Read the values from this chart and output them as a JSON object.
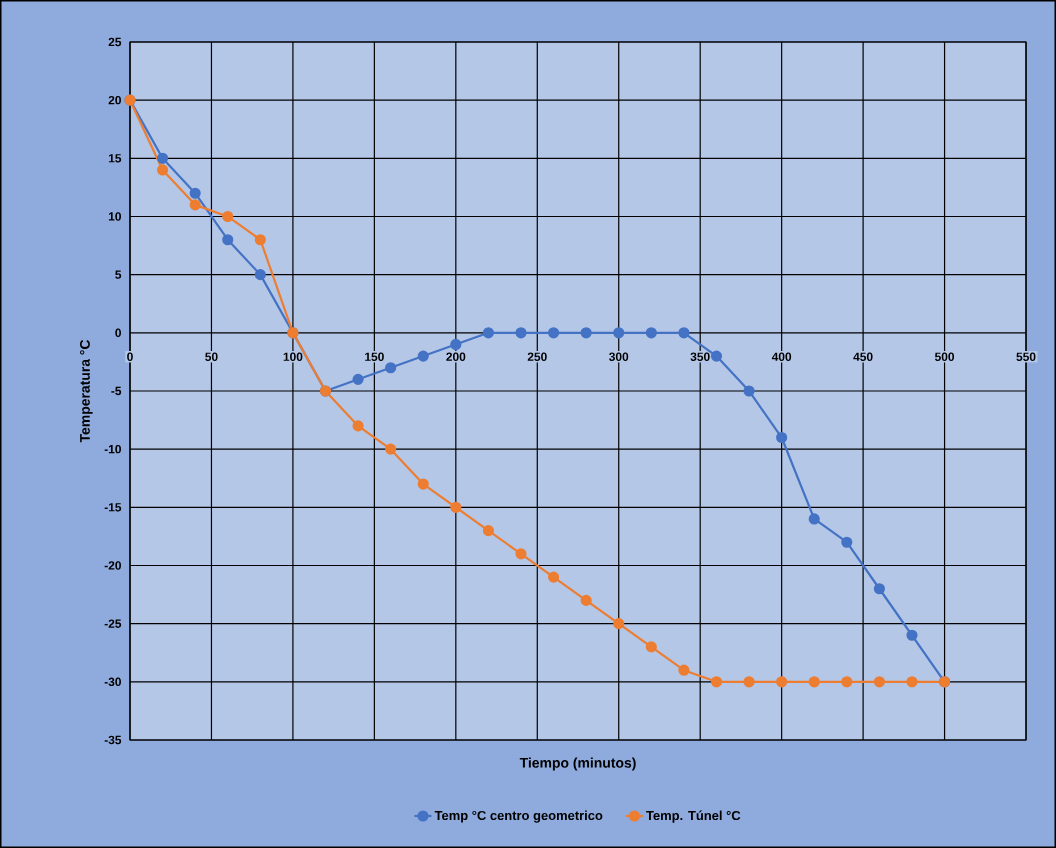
{
  "chart_data": {
    "type": "line",
    "xlabel": "Tiempo (minutos)",
    "ylabel": "Temperatura °C",
    "x": [
      0,
      20,
      40,
      60,
      80,
      100,
      120,
      140,
      160,
      180,
      200,
      220,
      240,
      260,
      280,
      300,
      320,
      340,
      360,
      380,
      400,
      420,
      440,
      460,
      480,
      500
    ],
    "series": [
      {
        "name": "Temp °C centro geometrico",
        "color": "#4472c4",
        "values": [
          20,
          15,
          12,
          8,
          5,
          0,
          -5,
          -4,
          -3,
          -2,
          -1,
          0,
          0,
          0,
          0,
          0,
          0,
          0,
          -2,
          -5,
          -9,
          -16,
          -18,
          -22,
          -26,
          -30
        ]
      },
      {
        "name": "Temp. Túnel °C",
        "color": "#ed7d31",
        "values": [
          20,
          14,
          11,
          10,
          8,
          0,
          -5,
          -8,
          -10,
          -13,
          -15,
          -17,
          -19,
          -21,
          -23,
          -25,
          -27,
          -29,
          -30,
          -30,
          -30,
          -30,
          -30,
          -30,
          -30,
          -30
        ]
      }
    ],
    "xlim": [
      0,
      550
    ],
    "ylim": [
      -35,
      25
    ],
    "xticks": [
      0,
      50,
      100,
      150,
      200,
      250,
      300,
      350,
      400,
      450,
      500,
      550
    ],
    "yticks": [
      -35,
      -30,
      -25,
      -20,
      -15,
      -10,
      -5,
      0,
      5,
      10,
      15,
      20,
      25
    ],
    "grid": true,
    "legend": "bottom",
    "marker": "circle",
    "line_style": "solid"
  }
}
